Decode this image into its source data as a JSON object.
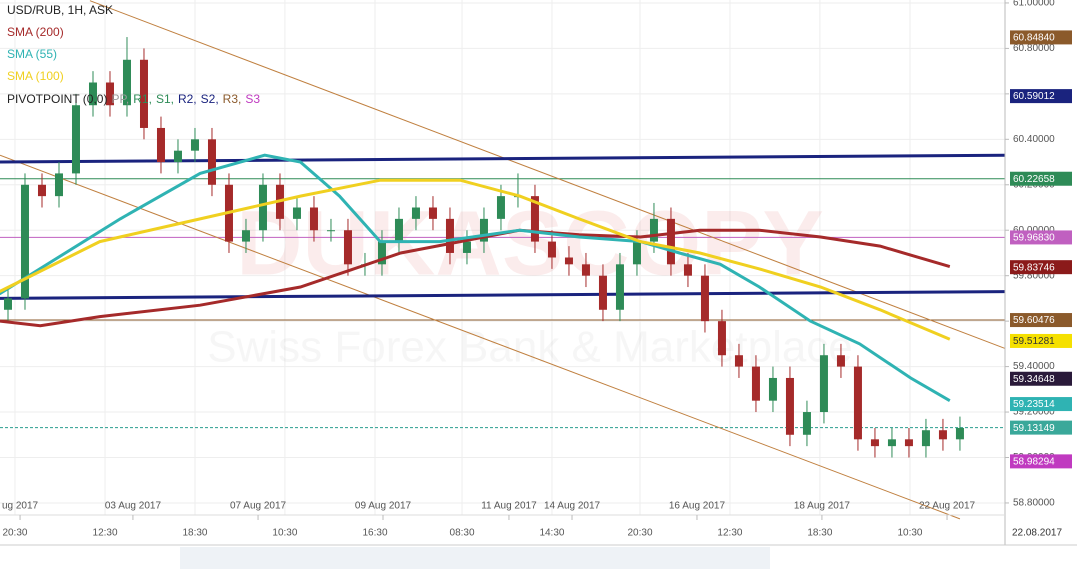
{
  "chart_data": {
    "type": "candlestick",
    "title": "USD/RUB, 1H, ASK",
    "watermark": [
      "DUKASCOPY",
      "Swiss Forex Bank & Marketplace"
    ],
    "x": [
      0,
      1,
      2,
      3,
      4,
      5,
      6,
      7,
      8,
      9,
      10,
      11,
      12,
      13,
      14,
      15,
      16,
      17,
      18,
      19,
      20,
      21,
      22,
      23,
      24,
      25,
      26,
      27,
      28,
      29,
      30,
      31,
      32,
      33,
      34,
      35,
      36,
      37,
      38,
      39,
      40,
      41,
      42,
      43,
      44,
      45,
      46,
      47,
      48,
      49,
      50,
      51,
      52,
      53,
      54,
      55,
      56
    ],
    "open": [
      59.65,
      59.7,
      60.2,
      60.15,
      60.25,
      60.55,
      60.65,
      60.55,
      60.75,
      60.45,
      60.3,
      60.35,
      60.4,
      60.2,
      59.95,
      60.0,
      60.2,
      60.05,
      60.1,
      60.0,
      60.0,
      59.85,
      59.85,
      59.95,
      60.05,
      60.1,
      60.05,
      59.9,
      59.95,
      60.05,
      60.15,
      60.15,
      59.95,
      59.88,
      59.85,
      59.8,
      59.65,
      59.85,
      59.95,
      60.05,
      59.85,
      59.8,
      59.6,
      59.45,
      59.4,
      59.25,
      59.35,
      59.1,
      59.2,
      59.45,
      59.4,
      59.08,
      59.05,
      59.08,
      59.05,
      59.12,
      59.08
    ],
    "high": [
      59.75,
      60.25,
      60.25,
      60.3,
      60.6,
      60.7,
      60.7,
      60.85,
      60.8,
      60.5,
      60.4,
      60.45,
      60.45,
      60.25,
      60.05,
      60.25,
      60.25,
      60.15,
      60.15,
      60.05,
      60.05,
      59.9,
      60.0,
      60.1,
      60.15,
      60.15,
      60.1,
      60.0,
      60.1,
      60.2,
      60.25,
      60.2,
      60.0,
      59.93,
      59.9,
      59.85,
      59.9,
      60.0,
      60.12,
      60.1,
      59.9,
      59.85,
      59.65,
      59.5,
      59.45,
      59.4,
      59.4,
      59.25,
      59.5,
      59.5,
      59.45,
      59.13,
      59.13,
      59.13,
      59.17,
      59.17,
      59.18
    ],
    "low": [
      59.6,
      59.65,
      60.1,
      60.1,
      60.2,
      60.5,
      60.5,
      60.5,
      60.4,
      60.25,
      60.25,
      60.3,
      60.15,
      59.9,
      59.9,
      59.95,
      60.0,
      60.0,
      59.95,
      59.95,
      59.8,
      59.8,
      59.8,
      59.9,
      60.0,
      60.0,
      59.85,
      59.85,
      59.9,
      60.0,
      60.1,
      59.9,
      59.83,
      59.8,
      59.75,
      59.6,
      59.6,
      59.8,
      59.9,
      59.8,
      59.75,
      59.55,
      59.4,
      59.35,
      59.2,
      59.2,
      59.05,
      59.05,
      59.15,
      59.35,
      59.03,
      59.0,
      59.0,
      59.0,
      59.0,
      59.03,
      59.03
    ],
    "close": [
      59.7,
      60.2,
      60.15,
      60.25,
      60.55,
      60.65,
      60.55,
      60.75,
      60.45,
      60.3,
      60.35,
      60.4,
      60.2,
      59.95,
      60.0,
      60.2,
      60.05,
      60.1,
      60.0,
      60.0,
      59.85,
      59.85,
      59.95,
      60.05,
      60.1,
      60.05,
      59.9,
      59.95,
      60.05,
      60.15,
      60.15,
      59.95,
      59.88,
      59.85,
      59.8,
      59.65,
      59.85,
      59.95,
      60.05,
      59.85,
      59.8,
      59.6,
      59.45,
      59.4,
      59.25,
      59.35,
      59.1,
      59.2,
      59.45,
      59.4,
      59.08,
      59.05,
      59.08,
      59.05,
      59.12,
      59.08,
      59.13
    ],
    "up_color": "#2e8b57",
    "down_color": "#a52a2a",
    "series": [
      {
        "name": "SMA (200)",
        "color": "#a52a2a",
        "x": [
          -0.5,
          1.9,
          5.4,
          11.3,
          17.2,
          23.1,
          26.6,
          30.1,
          33.6,
          37.2,
          40.7,
          44.2,
          47.8,
          51.3,
          55.4
        ],
        "values": [
          59.6,
          59.58,
          59.62,
          59.67,
          59.75,
          59.9,
          59.95,
          60.0,
          59.98,
          59.97,
          60.0,
          60.0,
          59.97,
          59.93,
          59.84
        ]
      },
      {
        "name": "SMA (55)",
        "color": "#2fb3b3",
        "x": [
          -0.5,
          6.6,
          11.3,
          15.1,
          17.2,
          19.5,
          21.9,
          25.4,
          30.1,
          33.6,
          37.2,
          39.5,
          41.9,
          44.2,
          47.2,
          50.1,
          53.1,
          55.4
        ],
        "values": [
          59.72,
          60.05,
          60.25,
          60.33,
          60.3,
          60.15,
          59.95,
          59.95,
          60.0,
          59.97,
          59.95,
          59.9,
          59.85,
          59.75,
          59.6,
          59.5,
          59.35,
          59.25
        ]
      },
      {
        "name": "SMA (100)",
        "color": "#f0d020",
        "x": [
          -0.5,
          5.4,
          11.3,
          17.2,
          21.9,
          26.6,
          30.1,
          33.6,
          37.2,
          40.7,
          44.2,
          47.8,
          51.3,
          55.4
        ],
        "values": [
          59.73,
          59.95,
          60.05,
          60.15,
          60.22,
          60.22,
          60.15,
          60.05,
          59.95,
          59.9,
          59.83,
          59.75,
          59.65,
          59.52
        ]
      }
    ],
    "pivot_legend": [
      {
        "text": "PIVOTPOINT (0,0)",
        "color": "#222"
      },
      {
        "text": "PP,",
        "color": "#999"
      },
      {
        "text": "R1,",
        "color": "#2e8b57"
      },
      {
        "text": "S1,",
        "color": "#2e8b57"
      },
      {
        "text": "R2,",
        "color": "#1a237e"
      },
      {
        "text": "S2,",
        "color": "#1a237e"
      },
      {
        "text": "R3,",
        "color": "#8b5a2b"
      },
      {
        "text": "S3",
        "color": "#c03ac0"
      }
    ],
    "trend_lines": [
      {
        "color": "#c08040",
        "width": 1,
        "x": [
          4.82,
          58.65
        ],
        "values": [
          61.01,
          59.48
        ]
      },
      {
        "color": "#c08040",
        "width": 1,
        "x": [
          -0.47,
          56.0
        ],
        "values": [
          60.33,
          58.73
        ]
      },
      {
        "color": "#1a237e",
        "width": 3,
        "x": [
          -0.47,
          58.65
        ],
        "values": [
          60.3,
          60.33
        ]
      },
      {
        "color": "#1a237e",
        "width": 3,
        "x": [
          -0.47,
          58.65
        ],
        "values": [
          59.7,
          59.73
        ]
      }
    ],
    "levels": [
      {
        "value": 60.22658,
        "color": "#2e8b57",
        "dashed": false
      },
      {
        "value": 59.9683,
        "color": "#c060c0",
        "dashed": false
      },
      {
        "value": 59.60476,
        "color": "#8b5a2b",
        "dashed": false
      },
      {
        "value": 59.13149,
        "color": "#2a9d8f",
        "dashed": true
      }
    ],
    "price_labels": [
      {
        "value": 60.8484,
        "label": "60.84840",
        "color": "#8b5a2b",
        "text_color": "#fff"
      },
      {
        "value": 60.59012,
        "label": "60.59012",
        "color": "#1a237e",
        "text_color": "#fff"
      },
      {
        "value": 60.22658,
        "label": "60.22658",
        "color": "#2e8b57",
        "text_color": "#fff"
      },
      {
        "value": 59.9683,
        "label": "59.96830",
        "color": "#c060c0",
        "text_color": "#fff"
      },
      {
        "value": 59.83746,
        "label": "59.83746",
        "color": "#8b1a1a",
        "text_color": "#fff"
      },
      {
        "value": 59.60476,
        "label": "59.60476",
        "color": "#8b5a2b",
        "text_color": "#fff"
      },
      {
        "value": 59.51281,
        "label": "59.51281",
        "color": "#f5e000",
        "text_color": "#333"
      },
      {
        "value": 59.34648,
        "label": "59.34648",
        "color": "#2a1a3a",
        "text_color": "#fff"
      },
      {
        "value": 59.23514,
        "label": "59.23514",
        "color": "#2fb3b3",
        "text_color": "#fff"
      },
      {
        "value": 59.13149,
        "label": "59.13149",
        "color": "#3aa89a",
        "text_color": "#fff"
      },
      {
        "value": 58.98294,
        "label": "58.98294",
        "color": "#c03ac0",
        "text_color": "#fff"
      }
    ],
    "xlim": [
      -0.47,
      58.65
    ],
    "ylim": [
      58.747,
      61.013
    ],
    "yticks": [
      {
        "value": 58.8,
        "label": "58.80000"
      },
      {
        "value": 59.0,
        "label": "59.00000"
      },
      {
        "value": 59.2,
        "label": "59.20000"
      },
      {
        "value": 59.4,
        "label": "59.40000"
      },
      {
        "value": 59.6,
        "label": "59.60000"
      },
      {
        "value": 59.8,
        "label": "59.80000"
      },
      {
        "value": 60.0,
        "label": "60.00000"
      },
      {
        "value": 60.2,
        "label": "60.20000"
      },
      {
        "value": 60.4,
        "label": "60.40000"
      },
      {
        "value": 60.6,
        "label": "60.60000"
      },
      {
        "value": 60.8,
        "label": "60.80000"
      },
      {
        "value": 61.0,
        "label": "61.00000"
      }
    ],
    "xticks": [
      {
        "value": 0.41,
        "label": "20:30"
      },
      {
        "value": 5.71,
        "label": "12:30"
      },
      {
        "value": 11.0,
        "label": "18:30"
      },
      {
        "value": 16.29,
        "label": "10:30"
      },
      {
        "value": 21.59,
        "label": "16:30"
      },
      {
        "value": 26.71,
        "label": "08:30"
      },
      {
        "value": 32.0,
        "label": "14:30"
      },
      {
        "value": 37.18,
        "label": "20:30"
      },
      {
        "value": 42.47,
        "label": "12:30"
      },
      {
        "value": 47.76,
        "label": "18:30"
      },
      {
        "value": 53.06,
        "label": "10:30"
      }
    ],
    "date_ticks": [
      {
        "value": 0.71,
        "label": "ug 2017"
      },
      {
        "value": 7.35,
        "label": "03 Aug 2017"
      },
      {
        "value": 14.71,
        "label": "07 Aug 2017"
      },
      {
        "value": 22.06,
        "label": "09 Aug 2017"
      },
      {
        "value": 29.47,
        "label": "11 Aug 2017"
      },
      {
        "value": 33.18,
        "label": "14 Aug 2017"
      },
      {
        "value": 40.53,
        "label": "16 Aug 2017"
      },
      {
        "value": 47.88,
        "label": "18 Aug 2017"
      },
      {
        "value": 55.24,
        "label": "22 Aug 2017"
      }
    ],
    "axis_end_label": "22.08.2017",
    "grid": true
  }
}
